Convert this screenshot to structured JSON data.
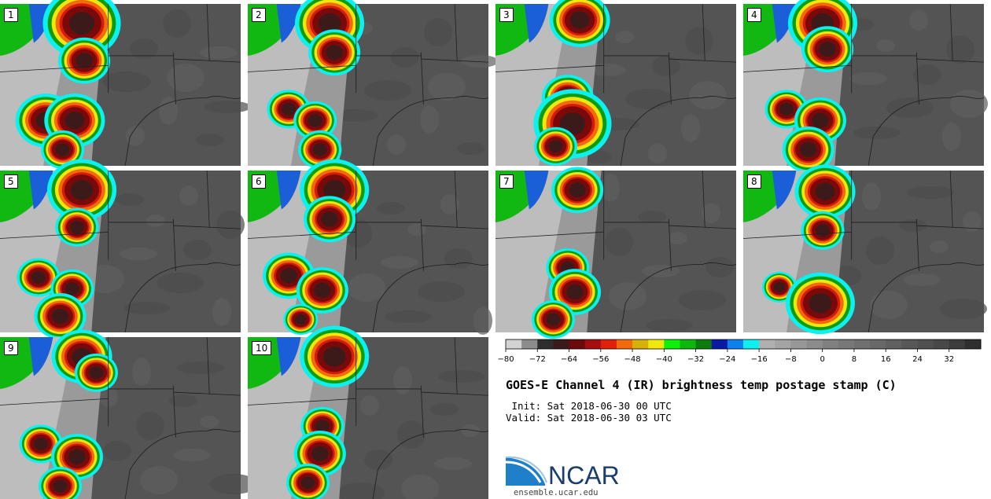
{
  "panels": [
    {
      "label": "1"
    },
    {
      "label": "2"
    },
    {
      "label": "3"
    },
    {
      "label": "4"
    },
    {
      "label": "5"
    },
    {
      "label": "6"
    },
    {
      "label": "7"
    },
    {
      "label": "8"
    },
    {
      "label": "9"
    },
    {
      "label": "10"
    }
  ],
  "colorbar": {
    "min": -80,
    "max": 40,
    "step": 4,
    "tick_labels": [
      "−80",
      "−72",
      "−64",
      "−56",
      "−48",
      "−40",
      "−32",
      "−24",
      "−16",
      "−8",
      "0",
      "8",
      "16",
      "24",
      "32"
    ],
    "colors": [
      "#d3d3d3",
      "#8c8c8c",
      "#2e2e2e",
      "#3c1a1a",
      "#6b0a0a",
      "#a40e0e",
      "#e0200a",
      "#f26a0c",
      "#d8b00a",
      "#eee80c",
      "#0cf10c",
      "#0cb80c",
      "#0c7c0c",
      "#0a1aa4",
      "#0c80ee",
      "#0cf0f0",
      "#b0b0b0",
      "#a4a4a4",
      "#989898",
      "#8c8c8c",
      "#808080",
      "#787878",
      "#707070",
      "#686868",
      "#606060",
      "#585858",
      "#505050",
      "#484848",
      "#3c3c3c",
      "#2e2e2e"
    ]
  },
  "title": "GOES-E Channel 4 (IR) brightness temp postage stamp (C)",
  "init_line": " Init: Sat 2018-06-30 00 UTC",
  "valid_line": "Valid: Sat 2018-06-30 03 UTC",
  "logo": {
    "text": "NCAR",
    "color": "#1a3d6e",
    "accent": "#1f7fc9"
  },
  "website": "ensemble.ucar.edu"
}
